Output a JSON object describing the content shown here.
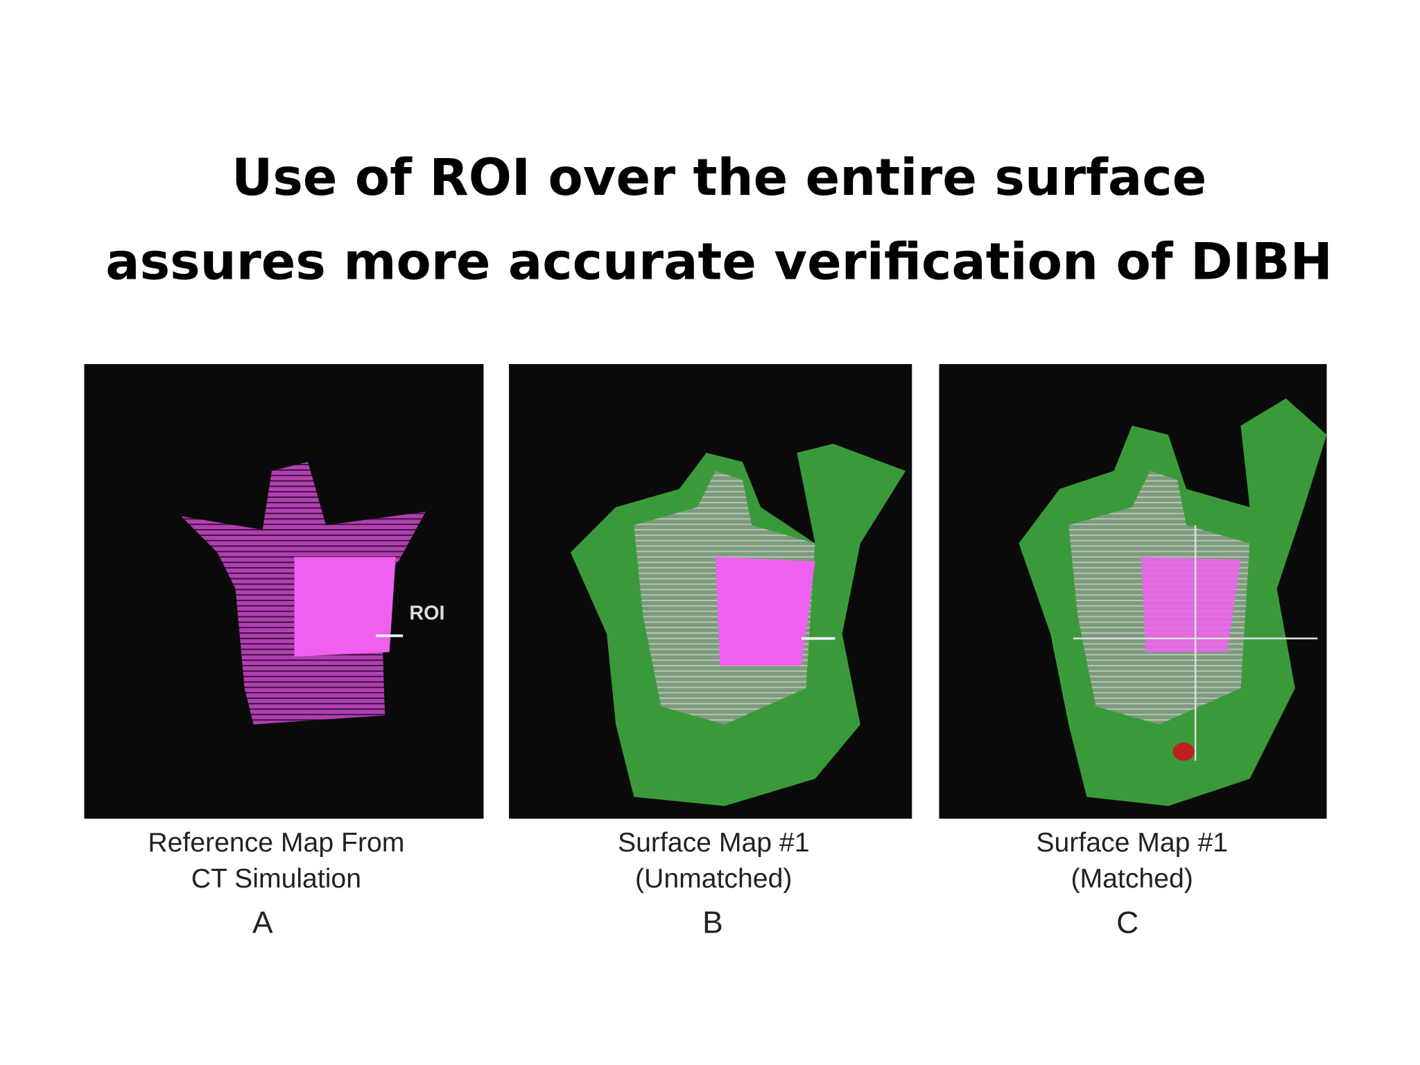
{
  "title": {
    "lines": [
      "Use of ROI over the entire surface",
      "assures more accurate verification of DIBH"
    ]
  },
  "panels": [
    {
      "caption": [
        "Reference Map  From",
        "CT Simulation"
      ],
      "letter": "A",
      "roi_label": "ROI"
    },
    {
      "caption": [
        "Surface Map #1",
        "(Unmatched)"
      ],
      "letter": "B"
    },
    {
      "caption": [
        "Surface Map #1",
        "(Matched)"
      ],
      "letter": "C"
    }
  ]
}
